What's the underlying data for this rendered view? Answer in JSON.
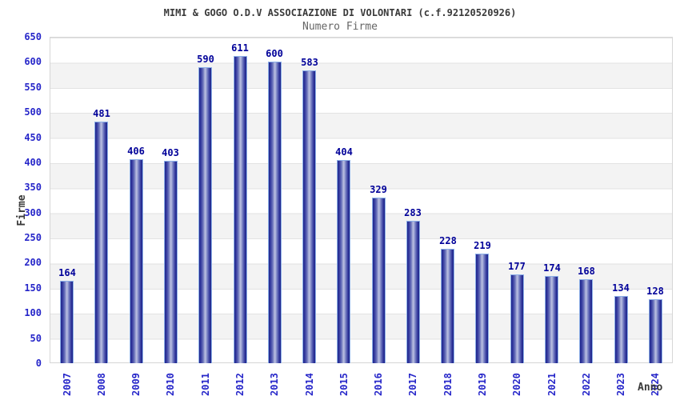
{
  "header": {
    "title": "MIMI & GOGO O.D.V ASSOCIAZIONE DI VOLONTARI (c.f.92120520926)",
    "subtitle": "Numero Firme"
  },
  "chart_data": {
    "type": "bar",
    "title": "MIMI & GOGO O.D.V ASSOCIAZIONE DI VOLONTARI (c.f.92120520926)",
    "subtitle": "Numero Firme",
    "xlabel": "Anno",
    "ylabel": "Firme",
    "categories": [
      "2007",
      "2008",
      "2009",
      "2010",
      "2011",
      "2012",
      "2013",
      "2014",
      "2015",
      "2016",
      "2017",
      "2018",
      "2019",
      "2020",
      "2021",
      "2022",
      "2023",
      "2024"
    ],
    "values": [
      164,
      481,
      406,
      403,
      590,
      611,
      600,
      583,
      404,
      329,
      283,
      228,
      219,
      177,
      174,
      168,
      134,
      128
    ],
    "ylim": [
      0,
      650
    ],
    "ytick_step": 50,
    "grid": true,
    "legend": "none",
    "band_colors": [
      "#ffffff",
      "#f3f3f3"
    ],
    "colors": {
      "bar_dark": "#20268c",
      "bar_light": "#b9bfe1",
      "bar_outline": "#8db0e8",
      "tick_label": "#2626c9",
      "value_label": "#000099",
      "title": "#3a3a3a",
      "subtitle": "#666666",
      "gridline": "#e2e2e2"
    }
  }
}
